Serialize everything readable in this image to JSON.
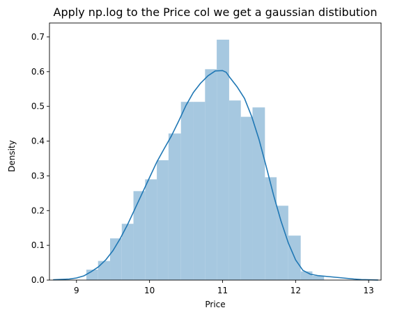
{
  "chart_data": {
    "type": "bar",
    "title": "Apply np.log to the Price col we get a gaussian distibution",
    "xlabel": "Price",
    "ylabel": "Density",
    "xlim": [
      8.63,
      13.17
    ],
    "ylim": [
      0,
      0.74
    ],
    "xticks": [
      "9",
      "10",
      "11",
      "12",
      "13"
    ],
    "xtick_values": [
      9,
      10,
      11,
      12,
      13
    ],
    "yticks": [
      "0.0",
      "0.1",
      "0.2",
      "0.3",
      "0.4",
      "0.5",
      "0.6",
      "0.7"
    ],
    "ytick_values": [
      0,
      0.1,
      0.2,
      0.3,
      0.4,
      0.5,
      0.6,
      0.7
    ],
    "grid": false,
    "histogram": {
      "bin_edges": [
        9.135,
        9.295,
        9.46,
        9.62,
        9.78,
        9.94,
        10.1,
        10.26,
        10.43,
        10.6,
        10.76,
        10.92,
        11.09,
        11.25,
        11.41,
        11.58,
        11.74,
        11.9,
        12.07,
        12.23,
        12.39
      ],
      "values": [
        0.03,
        0.055,
        0.12,
        0.162,
        0.256,
        0.29,
        0.345,
        0.422,
        0.513,
        0.513,
        0.607,
        0.692,
        0.517,
        0.47,
        0.497,
        0.296,
        0.214,
        0.128,
        0.025,
        0.012
      ]
    },
    "kde": {
      "x": [
        8.68,
        8.9,
        9.0,
        9.1,
        9.2,
        9.3,
        9.4,
        9.5,
        9.6,
        9.7,
        9.8,
        9.9,
        10.0,
        10.1,
        10.2,
        10.3,
        10.4,
        10.5,
        10.6,
        10.7,
        10.8,
        10.9,
        11.0,
        11.05,
        11.1,
        11.2,
        11.3,
        11.4,
        11.5,
        11.6,
        11.7,
        11.8,
        11.9,
        12.0,
        12.1,
        12.2,
        12.3,
        12.4,
        12.5,
        12.6,
        12.7,
        12.8,
        12.9,
        13.0,
        13.13
      ],
      "y": [
        0.001,
        0.003,
        0.006,
        0.012,
        0.024,
        0.038,
        0.058,
        0.085,
        0.12,
        0.16,
        0.205,
        0.25,
        0.295,
        0.34,
        0.378,
        0.415,
        0.458,
        0.503,
        0.54,
        0.567,
        0.588,
        0.602,
        0.603,
        0.598,
        0.583,
        0.556,
        0.523,
        0.47,
        0.404,
        0.325,
        0.243,
        0.17,
        0.107,
        0.058,
        0.028,
        0.017,
        0.013,
        0.011,
        0.009,
        0.007,
        0.005,
        0.003,
        0.0015,
        0.0008,
        0.0002
      ]
    },
    "colors": {
      "bars": "#a6c8e0",
      "line": "#1f77b4",
      "axes": "#000000"
    }
  }
}
